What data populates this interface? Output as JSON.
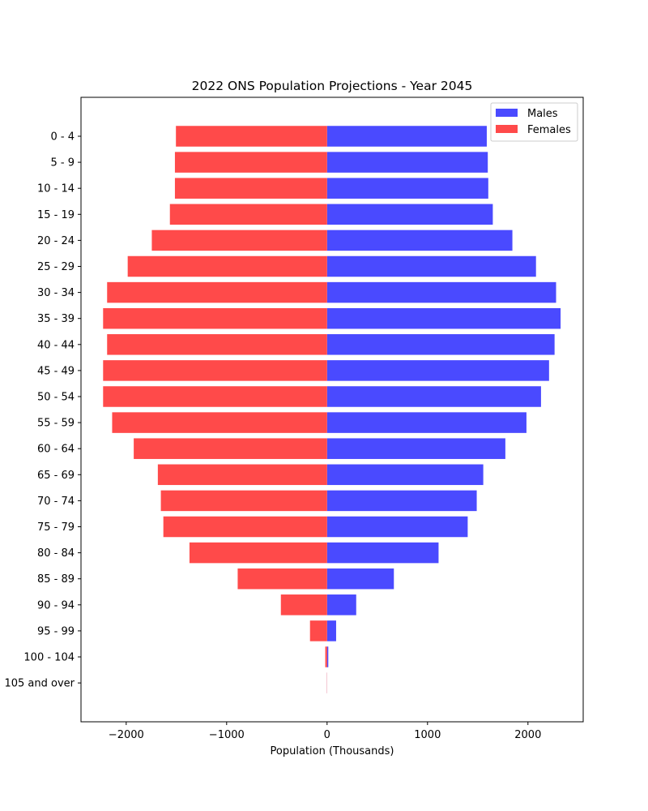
{
  "chart_data": {
    "type": "bar",
    "orientation": "horizontal",
    "title": "2022 ONS Population Projections - Year 2045",
    "xlabel": "Population (Thousands)",
    "ylabel": "",
    "xlim": [
      -2450,
      2550
    ],
    "xticks": [
      -2000,
      -1000,
      0,
      1000,
      2000
    ],
    "xtick_labels": [
      "−2000",
      "−1000",
      "0",
      "1000",
      "2000"
    ],
    "categories": [
      "0 - 4",
      "5 - 9",
      "10 - 14",
      "15 - 19",
      "20 - 24",
      "25 - 29",
      "30 - 34",
      "35 - 39",
      "40 - 44",
      "45 - 49",
      "50 - 54",
      "55 - 59",
      "60 - 64",
      "65 - 69",
      "70 - 74",
      "75 - 79",
      "80 - 84",
      "85 - 89",
      "90 - 94",
      "95 - 99",
      "100 - 104",
      "105 and over"
    ],
    "series": [
      {
        "name": "Males",
        "color": "#4a4aff",
        "values": [
          1590,
          1600,
          1605,
          1650,
          1845,
          2080,
          2280,
          2325,
          2265,
          2210,
          2130,
          1985,
          1775,
          1555,
          1490,
          1400,
          1110,
          665,
          290,
          90,
          12,
          1
        ]
      },
      {
        "name": "Females",
        "color": "#ff4a4a",
        "values": [
          -1505,
          -1515,
          -1515,
          -1565,
          -1745,
          -1985,
          -2190,
          -2230,
          -2190,
          -2230,
          -2230,
          -2140,
          -1925,
          -1685,
          -1655,
          -1630,
          -1370,
          -890,
          -460,
          -170,
          -18,
          -2
        ]
      }
    ],
    "legend": {
      "position": "top-right"
    },
    "grid": false
  }
}
